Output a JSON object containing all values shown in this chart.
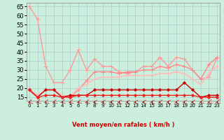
{
  "xlabel": "Vent moyen/en rafales ( km/h )",
  "background_color": "#cceedd",
  "grid_color": "#aacccc",
  "yticks": [
    15,
    20,
    25,
    30,
    35,
    40,
    45,
    50,
    55,
    60,
    65
  ],
  "xticks": [
    0,
    1,
    2,
    3,
    4,
    5,
    6,
    7,
    8,
    9,
    10,
    11,
    12,
    13,
    14,
    15,
    16,
    17,
    18,
    19,
    20,
    21,
    22,
    23
  ],
  "ylim": [
    13,
    67
  ],
  "xlim": [
    -0.3,
    23.3
  ],
  "series": [
    {
      "x": [
        0,
        1,
        2,
        3,
        4,
        5,
        6,
        7,
        8,
        9,
        10,
        11,
        12,
        13,
        14,
        15,
        16,
        17,
        18,
        19,
        20,
        21,
        22,
        23
      ],
      "y": [
        65,
        58,
        32,
        23,
        23,
        30,
        41,
        30,
        36,
        32,
        32,
        29,
        28,
        29,
        32,
        32,
        37,
        32,
        37,
        36,
        30,
        25,
        26,
        37
      ],
      "color": "#ff9999",
      "lw": 1.0,
      "marker": "+",
      "ms": 4
    },
    {
      "x": [
        0,
        1,
        2,
        3,
        4,
        5,
        6,
        7,
        8,
        9,
        10,
        11,
        12,
        13,
        14,
        15,
        16,
        17,
        18,
        19,
        20,
        21,
        22,
        23
      ],
      "y": [
        19,
        16,
        19,
        19,
        16,
        15,
        19,
        24,
        29,
        29,
        29,
        28,
        29,
        29,
        30,
        30,
        32,
        31,
        33,
        32,
        30,
        25,
        33,
        37
      ],
      "color": "#ff8888",
      "lw": 1.0,
      "marker": "+",
      "ms": 4
    },
    {
      "x": [
        0,
        1,
        2,
        3,
        4,
        5,
        6,
        7,
        8,
        9,
        10,
        11,
        12,
        13,
        14,
        15,
        16,
        17,
        18,
        19,
        20,
        21,
        22,
        23
      ],
      "y": [
        19,
        16,
        19,
        19,
        16,
        15,
        20,
        22,
        25,
        26,
        26,
        26,
        27,
        27,
        27,
        27,
        28,
        28,
        29,
        28,
        25,
        22,
        28,
        32
      ],
      "color": "#ffbbbb",
      "lw": 1.2,
      "marker": "+",
      "ms": 3
    },
    {
      "x": [
        0,
        1,
        2,
        3,
        4,
        5,
        6,
        7,
        8,
        9,
        10,
        11,
        12,
        13,
        14,
        15,
        16,
        17,
        18,
        19,
        20,
        21,
        22,
        23
      ],
      "y": [
        19,
        15,
        19,
        19,
        15,
        16,
        16,
        16,
        19,
        19,
        19,
        19,
        19,
        19,
        19,
        19,
        19,
        19,
        19,
        23,
        19,
        15,
        16,
        16
      ],
      "color": "#cc0000",
      "lw": 1.0,
      "marker": "D",
      "ms": 2
    },
    {
      "x": [
        0,
        1,
        2,
        3,
        4,
        5,
        6,
        7,
        8,
        9,
        10,
        11,
        12,
        13,
        14,
        15,
        16,
        17,
        18,
        19,
        20,
        21,
        22,
        23
      ],
      "y": [
        19,
        15,
        16,
        16,
        15,
        15,
        16,
        16,
        16,
        16,
        16,
        16,
        16,
        16,
        16,
        16,
        16,
        16,
        16,
        16,
        16,
        15,
        15,
        15
      ],
      "color": "#ee2222",
      "lw": 1.0,
      "marker": "D",
      "ms": 2
    }
  ],
  "arrows": {
    "x": [
      0,
      1,
      2,
      3,
      4,
      5,
      6,
      7,
      8,
      9,
      10,
      11,
      12,
      13,
      14,
      15,
      16,
      17,
      18,
      19,
      20,
      21,
      22,
      23
    ],
    "color": "#cc3333",
    "sw_angles": [
      225,
      225,
      225,
      225,
      225,
      225,
      225,
      225,
      200,
      200,
      200,
      200,
      200,
      200,
      200,
      200,
      200,
      200,
      200,
      200,
      200,
      225,
      225,
      225
    ]
  }
}
